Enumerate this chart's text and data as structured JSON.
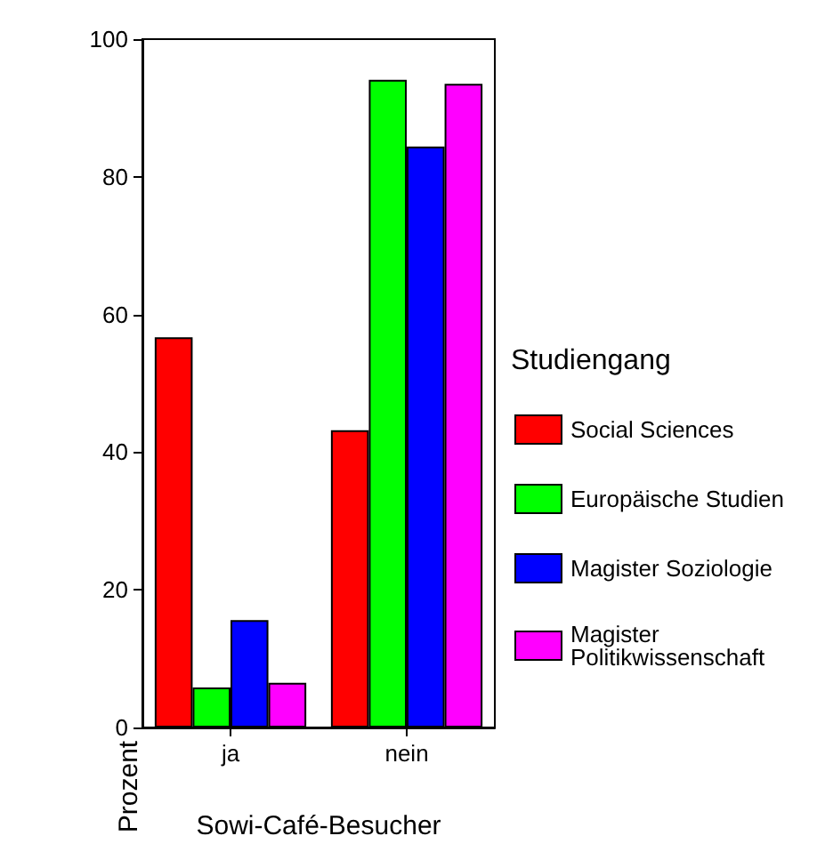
{
  "chart_data": {
    "type": "bar",
    "xlabel": "Sowi-Café-Besucher",
    "ylabel": "Prozent",
    "legend_title": "Studiengang",
    "categories": [
      "ja",
      "nein"
    ],
    "series": [
      {
        "name": "Social Sciences",
        "color": "#ff0000",
        "values": [
          56.7,
          43.2
        ]
      },
      {
        "name": "Europäische Studien",
        "color": "#00ff00",
        "values": [
          5.8,
          94.1
        ]
      },
      {
        "name": "Magister Soziologie",
        "color": "#0000ff",
        "values": [
          15.6,
          84.4
        ]
      },
      {
        "name": "Magister Politikwissenschaft",
        "color": "#ff00ff",
        "values": [
          6.5,
          93.5
        ]
      }
    ],
    "ylim": [
      0,
      100
    ],
    "yticks": [
      0,
      20,
      40,
      60,
      80,
      100
    ],
    "grid": false,
    "legend": "right"
  }
}
